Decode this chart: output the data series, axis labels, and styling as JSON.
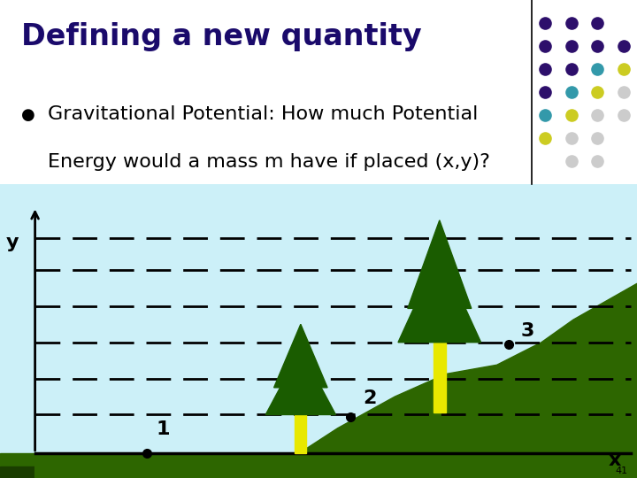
{
  "title": "Defining a new quantity",
  "title_color": "#1a0a6b",
  "title_fontsize": 24,
  "bullet_text_line1": "Gravitational Potential: How much Potential",
  "bullet_text_line2": "Energy would a mass m have if placed (x,y)?",
  "bullet_fontsize": 16,
  "bg_color": "#ffffff",
  "sky_color": "#ccf0f8",
  "ground_color": "#2d6600",
  "ground_dark": "#1a3d00",
  "yellow_trunk": "#e8e800",
  "tree_green": "#1a5c00",
  "dot_color": "#000000",
  "page_number": "41",
  "dot_grid": [
    [
      {
        "col": 0,
        "row": 0,
        "color": "#2d0f6b"
      },
      {
        "col": 1,
        "row": 0,
        "color": "#2d0f6b"
      },
      {
        "col": 2,
        "row": 0,
        "color": "#2d0f6b"
      }
    ],
    [
      {
        "col": 0,
        "row": 1,
        "color": "#2d0f6b"
      },
      {
        "col": 1,
        "row": 1,
        "color": "#2d0f6b"
      },
      {
        "col": 2,
        "row": 1,
        "color": "#2d0f6b"
      },
      {
        "col": 3,
        "row": 1,
        "color": "#2d0f6b"
      }
    ],
    [
      {
        "col": 0,
        "row": 2,
        "color": "#2d0f6b"
      },
      {
        "col": 1,
        "row": 2,
        "color": "#2d0f6b"
      },
      {
        "col": 2,
        "row": 2,
        "color": "#3399aa"
      },
      {
        "col": 3,
        "row": 2,
        "color": "#cccc22"
      }
    ],
    [
      {
        "col": 0,
        "row": 3,
        "color": "#2d0f6b"
      },
      {
        "col": 1,
        "row": 3,
        "color": "#3399aa"
      },
      {
        "col": 2,
        "row": 3,
        "color": "#cccc22"
      },
      {
        "col": 3,
        "row": 3,
        "color": "#cccccc"
      }
    ],
    [
      {
        "col": 0,
        "row": 4,
        "color": "#3399aa"
      },
      {
        "col": 1,
        "row": 4,
        "color": "#cccc22"
      },
      {
        "col": 2,
        "row": 4,
        "color": "#cccccc"
      },
      {
        "col": 3,
        "row": 4,
        "color": "#cccccc"
      }
    ],
    [
      {
        "col": 0,
        "row": 5,
        "color": "#cccc22"
      },
      {
        "col": 1,
        "row": 5,
        "color": "#cccccc"
      },
      {
        "col": 2,
        "row": 5,
        "color": "#cccccc"
      }
    ],
    [
      {
        "col": 1,
        "row": 6,
        "color": "#cccccc"
      },
      {
        "col": 2,
        "row": 6,
        "color": "#cccccc"
      }
    ]
  ]
}
